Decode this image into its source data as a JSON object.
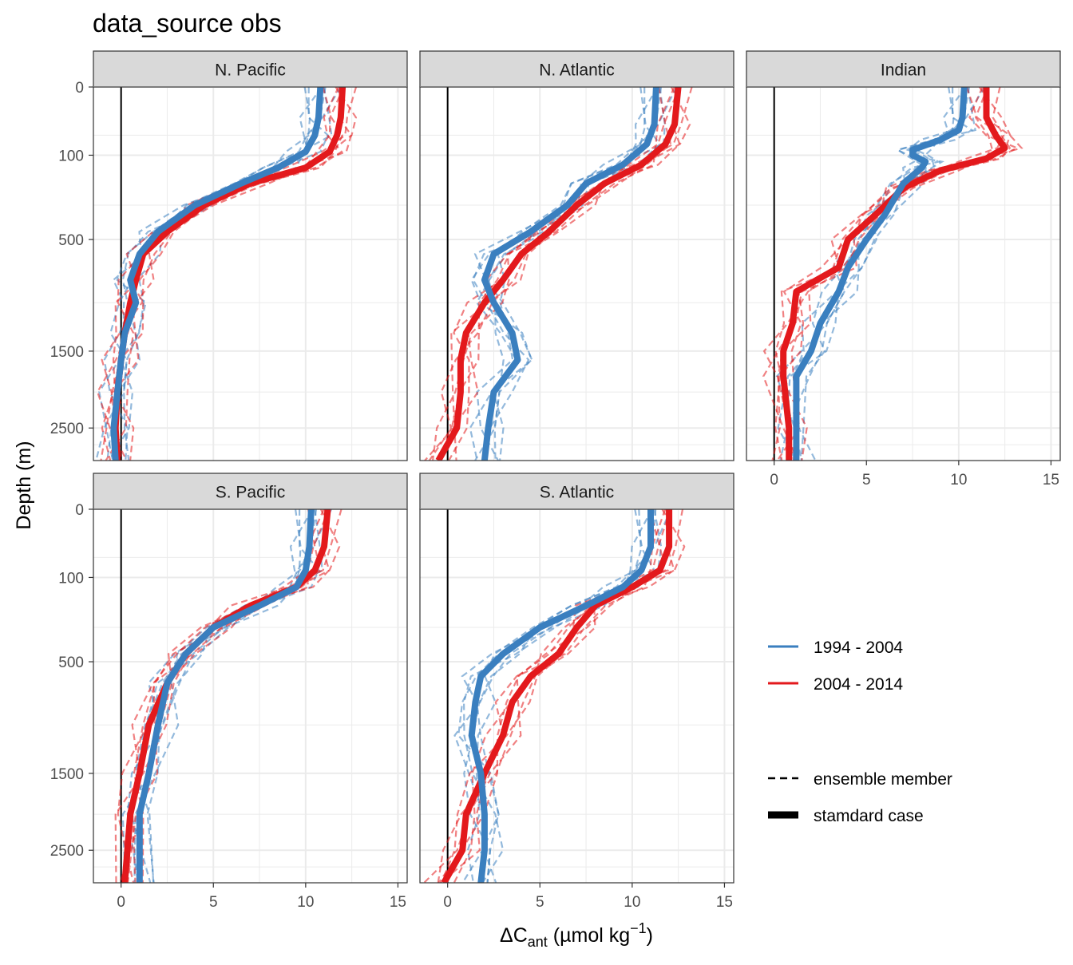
{
  "title": "data_source obs",
  "ylabel": "Depth (m)",
  "xlabel": {
    "base": "ΔC",
    "sub": "ant",
    "rest": " (µmol kg",
    "sup": "−1",
    "close": ")"
  },
  "colors": {
    "period_1": "#3A7FBF",
    "period_2": "#E3191C",
    "strip_bg": "#D9D9D9",
    "grid": "#EBEBEB"
  },
  "legend": {
    "period": [
      {
        "label": "1994 - 2004",
        "color": "#3A7FBF"
      },
      {
        "label": "2004 - 2014",
        "color": "#E3191C"
      }
    ],
    "linetype": [
      {
        "label": "ensemble member",
        "style": "dashed"
      },
      {
        "label": "stamdard case",
        "style": "solid"
      }
    ]
  },
  "chart_data": {
    "type": "line",
    "facet_by": "basin",
    "x_ticks": [
      0,
      5,
      10,
      15
    ],
    "xlim": [
      -1.5,
      15.5
    ],
    "y_ticks": [
      0,
      100,
      500,
      1500,
      2500
    ],
    "y_scale": "reversed sqrt",
    "ylim": [
      0,
      3000
    ],
    "panels": [
      {
        "name": "N. Pacific",
        "series": [
          {
            "period": "1994 - 2004",
            "type": "standard case",
            "points": [
              [
                10.8,
                0
              ],
              [
                10.7,
                20
              ],
              [
                10.5,
                50
              ],
              [
                10.0,
                90
              ],
              [
                8.5,
                140
              ],
              [
                6.5,
                200
              ],
              [
                4.0,
                300
              ],
              [
                2.0,
                450
              ],
              [
                1.0,
                600
              ],
              [
                0.5,
                800
              ],
              [
                0.8,
                1000
              ],
              [
                0.2,
                1300
              ],
              [
                0.0,
                1600
              ],
              [
                -0.2,
                2000
              ],
              [
                -0.4,
                2500
              ],
              [
                -0.3,
                3000
              ]
            ]
          },
          {
            "period": "2004 - 2014",
            "type": "standard case",
            "points": [
              [
                12.0,
                0
              ],
              [
                11.9,
                20
              ],
              [
                11.7,
                50
              ],
              [
                11.3,
                90
              ],
              [
                10.0,
                140
              ],
              [
                7.0,
                200
              ],
              [
                4.5,
                300
              ],
              [
                2.5,
                450
              ],
              [
                1.2,
                600
              ],
              [
                0.8,
                800
              ],
              [
                0.5,
                1000
              ],
              [
                0.2,
                1300
              ],
              [
                0.0,
                1600
              ],
              [
                -0.2,
                2000
              ],
              [
                -0.3,
                2500
              ],
              [
                -0.2,
                3000
              ]
            ]
          }
        ]
      },
      {
        "name": "N. Atlantic",
        "series": [
          {
            "period": "1994 - 2004",
            "type": "standard case",
            "points": [
              [
                11.3,
                0
              ],
              [
                11.2,
                30
              ],
              [
                10.8,
                70
              ],
              [
                9.5,
                130
              ],
              [
                7.5,
                200
              ],
              [
                6.5,
                300
              ],
              [
                4.5,
                450
              ],
              [
                2.5,
                600
              ],
              [
                2.0,
                800
              ],
              [
                2.5,
                1000
              ],
              [
                3.5,
                1300
              ],
              [
                3.8,
                1600
              ],
              [
                2.5,
                2000
              ],
              [
                2.2,
                2500
              ],
              [
                2.0,
                3000
              ]
            ]
          },
          {
            "period": "2004 - 2014",
            "type": "standard case",
            "points": [
              [
                12.5,
                0
              ],
              [
                12.3,
                30
              ],
              [
                11.8,
                70
              ],
              [
                10.5,
                130
              ],
              [
                8.5,
                200
              ],
              [
                7.0,
                300
              ],
              [
                5.5,
                450
              ],
              [
                4.0,
                600
              ],
              [
                3.0,
                800
              ],
              [
                2.0,
                1000
              ],
              [
                1.0,
                1300
              ],
              [
                0.7,
                1600
              ],
              [
                0.7,
                2000
              ],
              [
                0.5,
                2500
              ],
              [
                -0.5,
                3000
              ]
            ]
          }
        ]
      },
      {
        "name": "Indian",
        "series": [
          {
            "period": "1994 - 2004",
            "type": "standard case",
            "points": [
              [
                10.3,
                0
              ],
              [
                10.2,
                20
              ],
              [
                10.0,
                40
              ],
              [
                9.0,
                60
              ],
              [
                7.5,
                85
              ],
              [
                7.5,
                100
              ],
              [
                8.2,
                120
              ],
              [
                8.0,
                140
              ],
              [
                7.0,
                200
              ],
              [
                6.0,
                350
              ],
              [
                5.0,
                500
              ],
              [
                4.0,
                700
              ],
              [
                3.5,
                900
              ],
              [
                2.5,
                1200
              ],
              [
                2.0,
                1500
              ],
              [
                1.2,
                1800
              ],
              [
                1.2,
                2500
              ],
              [
                1.2,
                3000
              ]
            ]
          },
          {
            "period": "2004 - 2014",
            "type": "standard case",
            "points": [
              [
                11.5,
                0
              ],
              [
                11.5,
                20
              ],
              [
                12.0,
                50
              ],
              [
                12.5,
                80
              ],
              [
                11.5,
                110
              ],
              [
                9.0,
                150
              ],
              [
                7.0,
                220
              ],
              [
                5.5,
                350
              ],
              [
                4.0,
                500
              ],
              [
                3.5,
                700
              ],
              [
                1.2,
                900
              ],
              [
                1.0,
                1200
              ],
              [
                0.5,
                1500
              ],
              [
                0.5,
                1800
              ],
              [
                0.8,
                2500
              ],
              [
                0.8,
                3000
              ]
            ]
          }
        ]
      },
      {
        "name": "S. Pacific",
        "series": [
          {
            "period": "1994 - 2004",
            "type": "standard case",
            "points": [
              [
                10.3,
                0
              ],
              [
                10.2,
                30
              ],
              [
                10.0,
                80
              ],
              [
                9.5,
                130
              ],
              [
                7.5,
                200
              ],
              [
                5.0,
                300
              ],
              [
                3.5,
                450
              ],
              [
                2.5,
                650
              ],
              [
                2.0,
                1000
              ],
              [
                1.5,
                1500
              ],
              [
                1.0,
                2000
              ],
              [
                1.0,
                3000
              ]
            ]
          },
          {
            "period": "2004 - 2014",
            "type": "standard case",
            "points": [
              [
                11.2,
                0
              ],
              [
                11.0,
                30
              ],
              [
                10.5,
                80
              ],
              [
                9.5,
                130
              ],
              [
                7.0,
                200
              ],
              [
                5.0,
                300
              ],
              [
                3.5,
                450
              ],
              [
                2.5,
                650
              ],
              [
                1.5,
                1000
              ],
              [
                1.0,
                1500
              ],
              [
                0.5,
                2000
              ],
              [
                0.2,
                3000
              ]
            ]
          }
        ]
      },
      {
        "name": "S. Atlantic",
        "series": [
          {
            "period": "1994 - 2004",
            "type": "standard case",
            "points": [
              [
                11.0,
                0
              ],
              [
                11.0,
                30
              ],
              [
                10.5,
                80
              ],
              [
                9.5,
                130
              ],
              [
                7.5,
                200
              ],
              [
                5.0,
                300
              ],
              [
                3.0,
                450
              ],
              [
                1.8,
                600
              ],
              [
                1.5,
                800
              ],
              [
                1.3,
                1100
              ],
              [
                1.8,
                1500
              ],
              [
                2.0,
                2000
              ],
              [
                2.0,
                2500
              ],
              [
                1.8,
                3000
              ]
            ]
          },
          {
            "period": "2004 - 2014",
            "type": "standard case",
            "points": [
              [
                12.0,
                0
              ],
              [
                12.0,
                30
              ],
              [
                11.5,
                80
              ],
              [
                10.0,
                130
              ],
              [
                8.0,
                200
              ],
              [
                7.0,
                300
              ],
              [
                6.0,
                450
              ],
              [
                4.5,
                600
              ],
              [
                3.5,
                800
              ],
              [
                3.0,
                1100
              ],
              [
                2.0,
                1500
              ],
              [
                1.0,
                2000
              ],
              [
                0.8,
                2500
              ],
              [
                -0.2,
                3000
              ]
            ]
          }
        ]
      }
    ]
  }
}
